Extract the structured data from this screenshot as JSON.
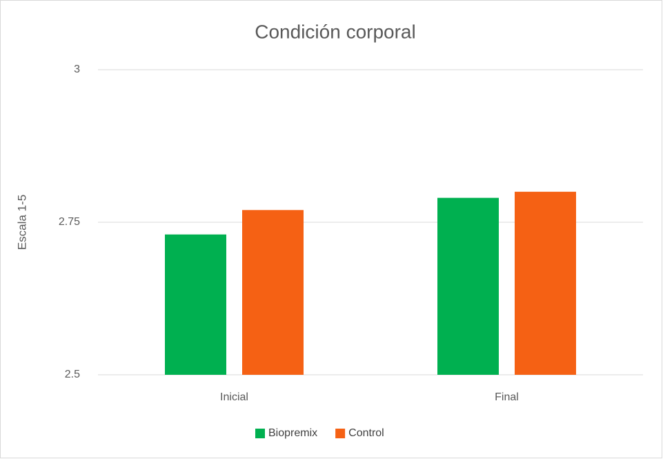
{
  "chart_data": {
    "type": "bar",
    "title": "Condición corporal",
    "y_label": "Escala 1-5",
    "categories": [
      "Inicial",
      "Final"
    ],
    "series": [
      {
        "name": "Biopremix",
        "color": "#00b050",
        "values": [
          2.73,
          2.79
        ]
      },
      {
        "name": "Control",
        "color": "#f56114",
        "values": [
          2.77,
          2.8
        ]
      }
    ],
    "ylim": [
      2.5,
      3
    ],
    "yticks": [
      2.5,
      2.75,
      3
    ],
    "grid": true,
    "legend": "bottom"
  }
}
